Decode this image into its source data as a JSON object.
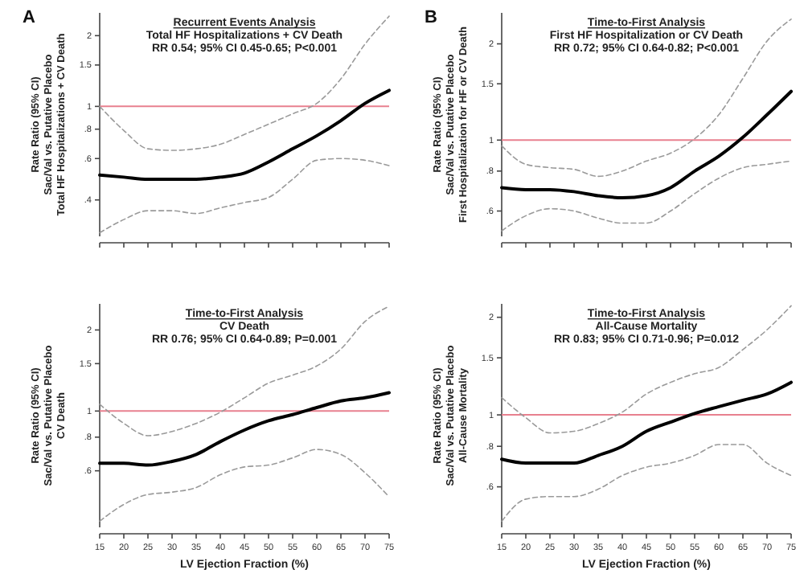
{
  "chart_data": [
    {
      "type": "line",
      "title": "Recurrent Events Analysis",
      "subtitle": "Total HF Hospitalizations + CV Death",
      "annotations": [
        "RR 0.54; 95% CI 0.45-0.65; P<0.001",
        "A"
      ],
      "ylabel": "Rate Ratio (95% CI)\nSac/Val vs. Putative Placebo\nTotal HF Hospitalizations + CV Death",
      "log": "y",
      "tick_labels": "y",
      "x": [
        15,
        20,
        25,
        30,
        35,
        40,
        45,
        50,
        55,
        60,
        65,
        70,
        75
      ],
      "xlim": [
        15,
        75
      ],
      "xticks": [
        {
          "value": 15,
          "label": null
        },
        {
          "value": 20,
          "label": null
        },
        {
          "value": 25,
          "label": null
        },
        {
          "value": 30,
          "label": null
        },
        {
          "value": 35,
          "label": null
        },
        {
          "value": 40,
          "label": null
        },
        {
          "value": 45,
          "label": null
        },
        {
          "value": 50,
          "label": null
        },
        {
          "value": 55,
          "label": null
        },
        {
          "value": 60,
          "label": null
        },
        {
          "value": 65,
          "label": null
        },
        {
          "value": 70,
          "label": null
        },
        {
          "value": 75,
          "label": null
        }
      ],
      "ylim": [
        0.28,
        2.5
      ],
      "yticks": [
        {
          "value": 0.4,
          "label": ".4"
        },
        {
          "value": 0.6,
          "label": ".6"
        },
        {
          "value": 0.8,
          "label": ".8"
        },
        1,
        1.5,
        2
      ],
      "ref_lines": [
        {
          "axis": "y",
          "value": 1,
          "color": "#e8808f"
        }
      ],
      "series": [
        {
          "color": "#000000",
          "line_style": "solid",
          "values": [
            0.51,
            0.5,
            0.49,
            0.49,
            0.49,
            0.5,
            0.52,
            0.58,
            0.66,
            0.75,
            0.87,
            1.03,
            1.17
          ]
        },
        {
          "color": "#9a9a9a",
          "line_style": "dashed",
          "values": [
            1.0,
            0.79,
            0.66,
            0.65,
            0.66,
            0.69,
            0.76,
            0.84,
            0.93,
            1.03,
            1.31,
            1.84,
            2.42
          ]
        },
        {
          "color": "#9a9a9a",
          "line_style": "dashed",
          "values": [
            0.29,
            0.33,
            0.36,
            0.36,
            0.35,
            0.37,
            0.39,
            0.41,
            0.49,
            0.59,
            0.6,
            0.59,
            0.56
          ]
        }
      ]
    },
    {
      "type": "line",
      "title": "Time-to-First Analysis",
      "subtitle": "First HF Hospitalization or CV Death",
      "annotations": [
        "RR 0.72; 95% CI 0.64-0.82; P<0.001",
        "B"
      ],
      "ylabel": "Rate Ratio (95% CI)\nSac/Val vs. Putative Placebo\nFirst Hospitalization for HF or CV Death",
      "log": "y",
      "tick_labels": "y",
      "x": [
        15,
        20,
        25,
        30,
        35,
        40,
        45,
        50,
        55,
        60,
        65,
        70,
        75
      ],
      "xlim": [
        15,
        75
      ],
      "xticks": [
        {
          "value": 15,
          "label": null
        },
        {
          "value": 20,
          "label": null
        },
        {
          "value": 25,
          "label": null
        },
        {
          "value": 30,
          "label": null
        },
        {
          "value": 35,
          "label": null
        },
        {
          "value": 40,
          "label": null
        },
        {
          "value": 45,
          "label": null
        },
        {
          "value": 50,
          "label": null
        },
        {
          "value": 55,
          "label": null
        },
        {
          "value": 60,
          "label": null
        },
        {
          "value": 65,
          "label": null
        },
        {
          "value": 70,
          "label": null
        },
        {
          "value": 75,
          "label": null
        }
      ],
      "ylim": [
        0.5,
        2.5
      ],
      "yticks": [
        {
          "value": 0.6,
          "label": ".6"
        },
        {
          "value": 0.8,
          "label": ".8"
        },
        1,
        1.5,
        2
      ],
      "ref_lines": [
        {
          "axis": "y",
          "value": 1,
          "color": "#e8808f"
        }
      ],
      "series": [
        {
          "color": "#000000",
          "line_style": "solid",
          "values": [
            0.71,
            0.7,
            0.7,
            0.69,
            0.67,
            0.66,
            0.67,
            0.71,
            0.8,
            0.89,
            1.02,
            1.2,
            1.42
          ]
        },
        {
          "color": "#9a9a9a",
          "line_style": "dashed",
          "values": [
            0.96,
            0.84,
            0.82,
            0.81,
            0.77,
            0.8,
            0.86,
            0.91,
            1.01,
            1.2,
            1.56,
            2.04,
            2.39
          ]
        },
        {
          "color": "#9a9a9a",
          "line_style": "dashed",
          "values": [
            0.52,
            0.58,
            0.61,
            0.6,
            0.57,
            0.55,
            0.55,
            0.6,
            0.68,
            0.76,
            0.82,
            0.84,
            0.86
          ]
        }
      ]
    },
    {
      "type": "line",
      "title": "Time-to-First Analysis",
      "subtitle": "CV Death",
      "annotations": [
        "RR 0.76; 95% CI 0.64-0.89; P=0.001"
      ],
      "ylabel": "Rate Ratio (95% CI)\nSac/Val vs. Putative Placebo\nCV Death",
      "xlabel": "LV Ejection Fraction (%)",
      "log": "y",
      "x": [
        15,
        20,
        25,
        30,
        35,
        40,
        45,
        50,
        55,
        60,
        65,
        70,
        75
      ],
      "xlim": [
        15,
        75
      ],
      "xticks": [
        15,
        20,
        25,
        30,
        35,
        40,
        45,
        50,
        55,
        60,
        65,
        70,
        75
      ],
      "ylim": [
        0.37,
        2.5
      ],
      "yticks": [
        {
          "value": 0.6,
          "label": ".6"
        },
        {
          "value": 0.8,
          "label": ".8"
        },
        1,
        1.5,
        2
      ],
      "ref_lines": [
        {
          "axis": "y",
          "value": 1,
          "color": "#e8808f"
        }
      ],
      "series": [
        {
          "color": "#000000",
          "line_style": "solid",
          "values": [
            0.64,
            0.64,
            0.63,
            0.65,
            0.69,
            0.77,
            0.85,
            0.92,
            0.97,
            1.03,
            1.09,
            1.12,
            1.17
          ]
        },
        {
          "color": "#9a9a9a",
          "line_style": "dashed",
          "values": [
            1.06,
            0.9,
            0.81,
            0.84,
            0.9,
            0.99,
            1.12,
            1.27,
            1.36,
            1.47,
            1.7,
            2.15,
            2.45
          ]
        },
        {
          "color": "#9a9a9a",
          "line_style": "dashed",
          "values": [
            0.39,
            0.45,
            0.49,
            0.5,
            0.52,
            0.58,
            0.62,
            0.63,
            0.67,
            0.72,
            0.69,
            0.59,
            0.48
          ]
        }
      ]
    },
    {
      "type": "line",
      "title": "Time-to-First Analysis",
      "subtitle": "All-Cause Mortality",
      "annotations": [
        "RR 0.83; 95% CI 0.71-0.96; P=0.012"
      ],
      "ylabel": "Rate Ratio (95% CI)\nSac/Val vs. Putative Placebo\nAll-Cause Mortality",
      "xlabel": "LV Ejection Fraction (%)",
      "log": "y",
      "x": [
        15,
        20,
        25,
        30,
        35,
        40,
        45,
        50,
        55,
        60,
        65,
        70,
        75
      ],
      "xlim": [
        15,
        75
      ],
      "xticks": [
        15,
        20,
        25,
        30,
        35,
        40,
        45,
        50,
        55,
        60,
        65,
        70,
        75
      ],
      "ylim": [
        0.45,
        2.2
      ],
      "yticks": [
        {
          "value": 0.6,
          "label": ".6"
        },
        {
          "value": 0.8,
          "label": ".8"
        },
        1,
        1.5,
        2
      ],
      "ref_lines": [
        {
          "axis": "y",
          "value": 1,
          "color": "#e8808f"
        }
      ],
      "series": [
        {
          "color": "#000000",
          "line_style": "solid",
          "values": [
            0.73,
            0.71,
            0.71,
            0.71,
            0.75,
            0.8,
            0.89,
            0.95,
            1.01,
            1.06,
            1.11,
            1.16,
            1.26
          ]
        },
        {
          "color": "#9a9a9a",
          "line_style": "dashed",
          "values": [
            1.13,
            0.98,
            0.88,
            0.89,
            0.94,
            1.02,
            1.16,
            1.26,
            1.34,
            1.4,
            1.59,
            1.83,
            2.17
          ]
        },
        {
          "color": "#9a9a9a",
          "line_style": "dashed",
          "values": [
            0.47,
            0.55,
            0.56,
            0.56,
            0.59,
            0.65,
            0.69,
            0.71,
            0.75,
            0.81,
            0.81,
            0.71,
            0.65
          ]
        }
      ]
    }
  ]
}
